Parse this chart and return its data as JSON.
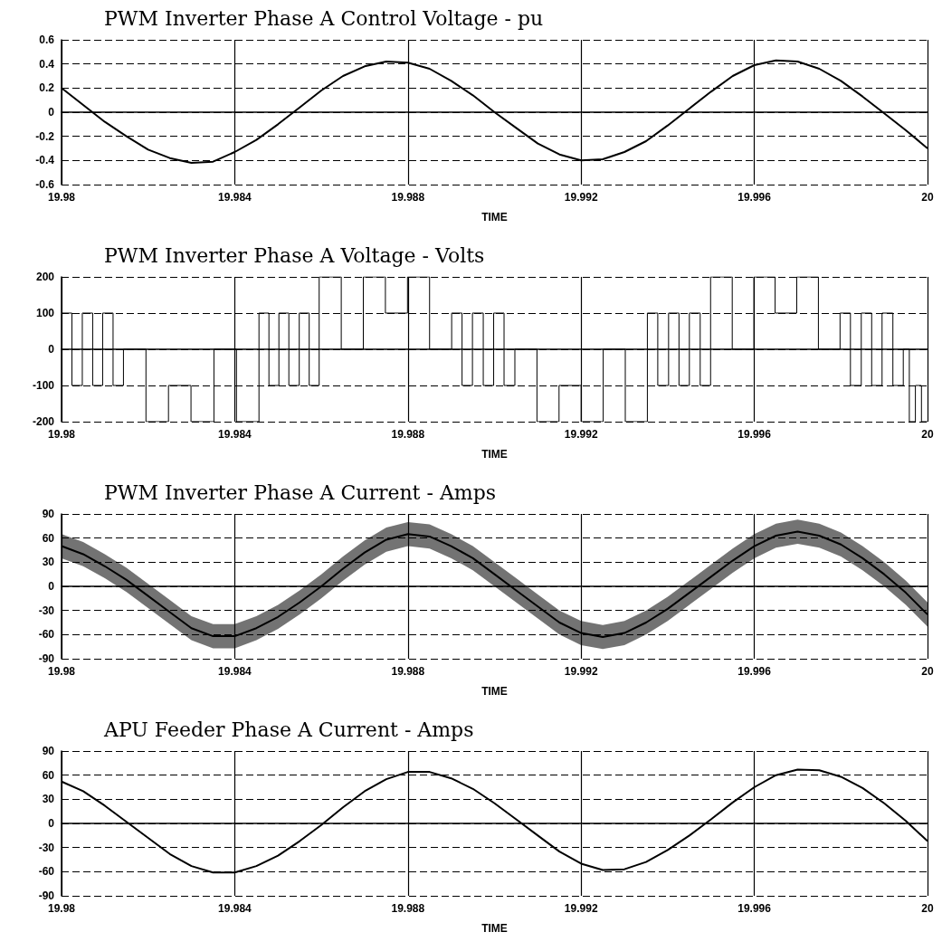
{
  "chart_data": [
    {
      "type": "line",
      "title": "PWM Inverter Phase A Control Voltage - pu",
      "xlabel": "TIME",
      "xlim": [
        19.98,
        20
      ],
      "xticks": [
        19.98,
        19.984,
        19.988,
        19.992,
        19.996,
        20
      ],
      "ylim": [
        -0.6,
        0.6
      ],
      "yticks": [
        -0.6,
        -0.4,
        -0.2,
        0,
        0.2,
        0.4,
        0.6
      ],
      "grid": true,
      "x": [
        19.98,
        19.9805,
        19.981,
        19.9815,
        19.982,
        19.9825,
        19.983,
        19.9835,
        19.984,
        19.9845,
        19.985,
        19.9855,
        19.986,
        19.9865,
        19.987,
        19.9875,
        19.988,
        19.9885,
        19.989,
        19.9895,
        19.99,
        19.9905,
        19.991,
        19.9915,
        19.992,
        19.9925,
        19.993,
        19.9935,
        19.994,
        19.9945,
        19.995,
        19.9955,
        19.996,
        19.9965,
        19.997,
        19.9975,
        19.998,
        19.9985,
        19.999,
        19.9995,
        20
      ],
      "series": [
        {
          "color": "#000000",
          "values": [
            0.2,
            0.06,
            -0.08,
            -0.2,
            -0.31,
            -0.38,
            -0.42,
            -0.41,
            -0.33,
            -0.23,
            -0.1,
            0.04,
            0.18,
            0.3,
            0.38,
            0.42,
            0.41,
            0.36,
            0.26,
            0.14,
            0.0,
            -0.13,
            -0.26,
            -0.35,
            -0.4,
            -0.39,
            -0.33,
            -0.24,
            -0.11,
            0.03,
            0.17,
            0.3,
            0.39,
            0.43,
            0.42,
            0.36,
            0.26,
            0.13,
            -0.01,
            -0.15,
            -0.3
          ]
        }
      ]
    },
    {
      "type": "step",
      "title": "PWM Inverter Phase A Voltage - Volts",
      "xlabel": "TIME",
      "xlim": [
        19.98,
        20
      ],
      "xticks": [
        19.98,
        19.984,
        19.988,
        19.992,
        19.996,
        20
      ],
      "ylim": [
        -200,
        200
      ],
      "yticks": [
        -200,
        -100,
        0,
        100,
        200
      ],
      "grid": true,
      "x": [
        19.98,
        19.98024,
        19.98048,
        19.98072,
        19.98095,
        19.98119,
        19.98143,
        19.98195,
        19.98247,
        19.98299,
        19.98352,
        19.98404,
        19.98456,
        19.98479,
        19.98502,
        19.98525,
        19.98549,
        19.98572,
        19.98595,
        19.98646,
        19.98697,
        19.98748,
        19.98799,
        19.9885,
        19.98901,
        19.98925,
        19.98949,
        19.98974,
        19.98998,
        19.99022,
        19.99047,
        19.99098,
        19.99149,
        19.992,
        19.99251,
        19.99302,
        19.99353,
        19.99377,
        19.99402,
        19.99426,
        19.9945,
        19.99475,
        19.99499,
        19.99549,
        19.99599,
        19.99648,
        19.99698,
        19.99748,
        19.99798,
        19.99822,
        19.99847,
        19.99871,
        19.99895,
        19.9992,
        19.99944,
        19.99958,
        19.99972,
        19.99986,
        20
      ],
      "series": [
        {
          "color": "#000000",
          "values": [
            100,
            -100,
            100,
            -100,
            100,
            -100,
            0,
            -200,
            -100,
            -200,
            0,
            -200,
            100,
            -100,
            100,
            -100,
            100,
            -100,
            200,
            0,
            200,
            100,
            200,
            0,
            100,
            -100,
            100,
            -100,
            100,
            -100,
            0,
            -200,
            -100,
            -200,
            0,
            -200,
            100,
            -100,
            100,
            -100,
            100,
            -100,
            200,
            0,
            200,
            100,
            200,
            0,
            100,
            -100,
            100,
            -100,
            100,
            -100,
            0,
            -200,
            -100,
            -200,
            -200
          ]
        }
      ]
    },
    {
      "type": "line",
      "title": "PWM Inverter Phase A Current - Amps",
      "xlabel": "TIME",
      "xlim": [
        19.98,
        20
      ],
      "xticks": [
        19.98,
        19.984,
        19.988,
        19.992,
        19.996,
        20
      ],
      "ylim": [
        -90,
        90
      ],
      "yticks": [
        -90,
        -60,
        -30,
        0,
        30,
        60,
        90
      ],
      "grid": true,
      "x": [
        19.98,
        19.9805,
        19.981,
        19.9815,
        19.982,
        19.9825,
        19.983,
        19.9835,
        19.984,
        19.9845,
        19.985,
        19.9855,
        19.986,
        19.9865,
        19.987,
        19.9875,
        19.988,
        19.9885,
        19.989,
        19.9895,
        19.99,
        19.9905,
        19.991,
        19.9915,
        19.992,
        19.9925,
        19.993,
        19.9935,
        19.994,
        19.9945,
        19.995,
        19.9955,
        19.996,
        19.9965,
        19.997,
        19.9975,
        19.998,
        19.9985,
        19.999,
        19.9995,
        20
      ],
      "series": [
        {
          "color": "#000000",
          "values": [
            50,
            40,
            25,
            8,
            -12,
            -32,
            -52,
            -62,
            -62,
            -52,
            -38,
            -20,
            0,
            22,
            42,
            58,
            65,
            62,
            50,
            35,
            15,
            -5,
            -25,
            -45,
            -58,
            -63,
            -58,
            -45,
            -28,
            -8,
            12,
            32,
            50,
            63,
            68,
            63,
            52,
            35,
            15,
            -8,
            -35
          ],
          "lower": [
            35,
            25,
            10,
            -7,
            -27,
            -47,
            -67,
            -77,
            -77,
            -67,
            -53,
            -35,
            -15,
            7,
            27,
            43,
            50,
            47,
            35,
            20,
            0,
            -20,
            -40,
            -60,
            -73,
            -78,
            -73,
            -60,
            -43,
            -23,
            -3,
            17,
            35,
            48,
            53,
            48,
            37,
            20,
            0,
            -23,
            -50
          ],
          "upper": [
            65,
            55,
            40,
            23,
            3,
            -17,
            -37,
            -47,
            -47,
            -37,
            -23,
            -5,
            15,
            37,
            57,
            73,
            80,
            77,
            65,
            50,
            30,
            10,
            -10,
            -30,
            -43,
            -48,
            -43,
            -30,
            -13,
            7,
            27,
            47,
            65,
            78,
            83,
            78,
            67,
            50,
            30,
            7,
            -20
          ]
        }
      ]
    },
    {
      "type": "line",
      "title": "APU Feeder Phase A Current - Amps",
      "xlabel": "TIME",
      "xlim": [
        19.98,
        20
      ],
      "xticks": [
        19.98,
        19.984,
        19.988,
        19.992,
        19.996,
        20
      ],
      "ylim": [
        -90,
        90
      ],
      "yticks": [
        -90,
        -60,
        -30,
        0,
        30,
        60,
        90
      ],
      "grid": true,
      "x": [
        19.98,
        19.9805,
        19.981,
        19.9815,
        19.982,
        19.9825,
        19.983,
        19.9835,
        19.984,
        19.9845,
        19.985,
        19.9855,
        19.986,
        19.9865,
        19.987,
        19.9875,
        19.988,
        19.9885,
        19.989,
        19.9895,
        19.99,
        19.9905,
        19.991,
        19.9915,
        19.992,
        19.9925,
        19.993,
        19.9935,
        19.994,
        19.9945,
        19.995,
        19.9955,
        19.996,
        19.9965,
        19.997,
        19.9975,
        19.998,
        19.9985,
        19.999,
        19.9995,
        20
      ],
      "series": [
        {
          "color": "#000000",
          "values": [
            52,
            40,
            22,
            2,
            -18,
            -38,
            -53,
            -61,
            -61,
            -53,
            -40,
            -22,
            -2,
            20,
            40,
            55,
            64,
            64,
            56,
            43,
            25,
            5,
            -15,
            -35,
            -50,
            -58,
            -57,
            -48,
            -33,
            -15,
            5,
            26,
            45,
            60,
            67,
            66,
            58,
            44,
            25,
            3,
            -22
          ]
        }
      ]
    }
  ]
}
